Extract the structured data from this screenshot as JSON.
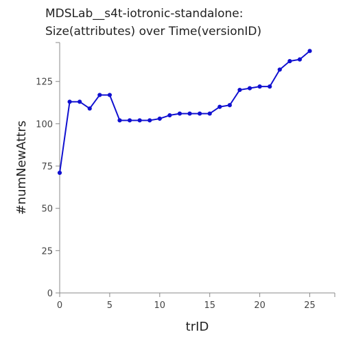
{
  "chart_data": {
    "type": "line",
    "title_lines": [
      "MDSLab__s4t-iotronic-standalone:",
      "Size(attributes) over Time(versionID)"
    ],
    "xlabel": "trID",
    "ylabel": "#numNewAttrs",
    "xlim": [
      0,
      27.5
    ],
    "ylim": [
      0,
      148
    ],
    "x_ticks": [
      0,
      5,
      10,
      15,
      20,
      25
    ],
    "y_ticks": [
      0,
      25,
      50,
      75,
      100,
      125
    ],
    "grid": false,
    "legend": "none",
    "line_color": "#1010d0",
    "series": [
      {
        "x": [
          0,
          1,
          2,
          3,
          4,
          5,
          6,
          7,
          8,
          9,
          10,
          11,
          12,
          13,
          14,
          15,
          16,
          17,
          18,
          19,
          20,
          21,
          22,
          23,
          24,
          25
        ],
        "y": [
          71,
          113,
          113,
          109,
          117,
          117,
          102,
          102,
          102,
          102,
          103,
          105,
          106,
          106,
          106,
          106,
          110,
          111,
          120,
          121,
          122,
          122,
          132,
          137,
          138,
          143
        ]
      }
    ]
  }
}
